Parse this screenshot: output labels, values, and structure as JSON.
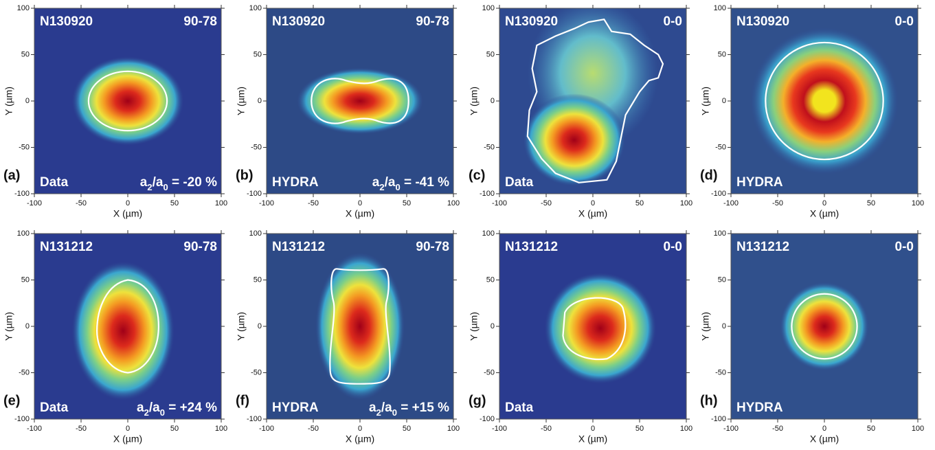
{
  "axes": {
    "x_label": "X (µm)",
    "y_label": "Y (µm)",
    "xlim": [
      -100,
      100
    ],
    "ylim": [
      -100,
      100
    ],
    "xticks": [
      -100,
      -50,
      0,
      50,
      100
    ],
    "yticks": [
      -100,
      -50,
      0,
      50,
      100
    ]
  },
  "panels": [
    {
      "letter": "(a)",
      "shot": "N130920",
      "view": "90-78",
      "source": "Data",
      "ratio": [
        "a",
        "2",
        "/a",
        "0",
        " = -20 %"
      ]
    },
    {
      "letter": "(b)",
      "shot": "N130920",
      "view": "90-78",
      "source": "HYDRA",
      "ratio": [
        "a",
        "2",
        "/a",
        "0",
        " = -41 %"
      ]
    },
    {
      "letter": "(c)",
      "shot": "N130920",
      "view": "0-0",
      "source": "Data"
    },
    {
      "letter": "(d)",
      "shot": "N130920",
      "view": "0-0",
      "source": "HYDRA"
    },
    {
      "letter": "(e)",
      "shot": "N131212",
      "view": "90-78",
      "source": "Data",
      "ratio": [
        "a",
        "2",
        "/a",
        "0",
        " = +24 %"
      ]
    },
    {
      "letter": "(f)",
      "shot": "N131212",
      "view": "90-78",
      "source": "HYDRA",
      "ratio": [
        "a",
        "2",
        "/a",
        "0",
        " = +15 %"
      ]
    },
    {
      "letter": "(g)",
      "shot": "N131212",
      "view": "0-0",
      "source": "Data"
    },
    {
      "letter": "(h)",
      "shot": "N131212",
      "view": "0-0",
      "source": "HYDRA"
    }
  ]
}
